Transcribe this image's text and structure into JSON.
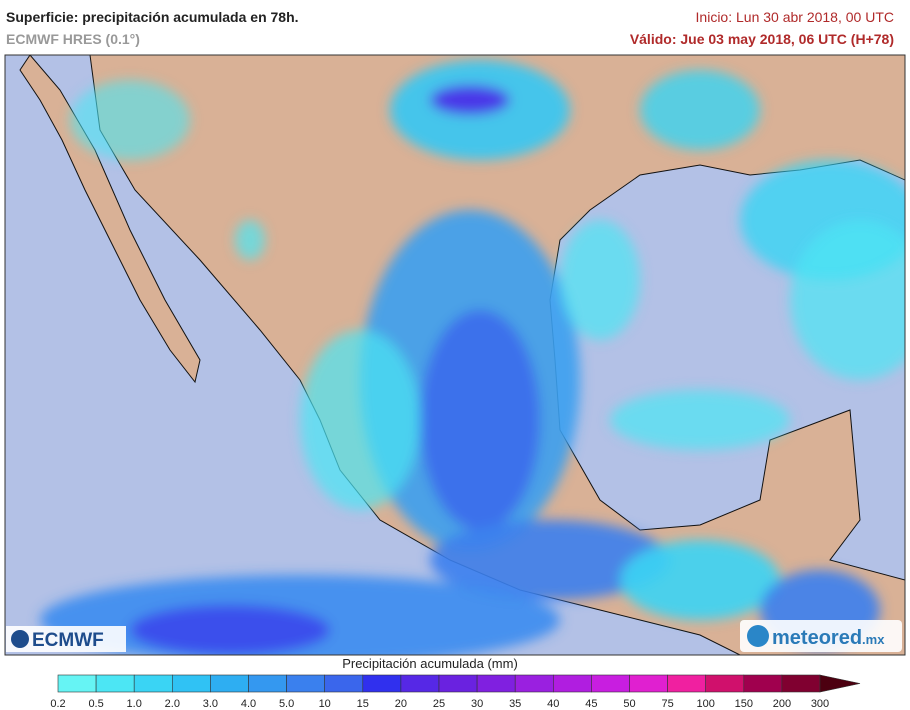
{
  "header": {
    "title": "Superficie: precipitación acumulada en 78h.",
    "model": "ECMWF HRES (0.1°)",
    "init": "Inicio: Lun 30 abr 2018, 00 UTC",
    "valid": "Válido: Jue 03 may 2018, 06 UTC (H+78)"
  },
  "logos": {
    "left": "ECMWF",
    "right": "meteored",
    "right_suffix": ".mx"
  },
  "legend": {
    "title": "Precipitación acumulada (mm)",
    "labels": [
      "0.2",
      "0.5",
      "1.0",
      "2.0",
      "3.0",
      "4.0",
      "5.0",
      "10",
      "15",
      "20",
      "25",
      "30",
      "35",
      "40",
      "45",
      "50",
      "75",
      "100",
      "150",
      "200",
      "300"
    ],
    "colors": [
      "#66f4f4",
      "#4ce6f4",
      "#3ad4f4",
      "#30c2f4",
      "#2eaef2",
      "#3498f0",
      "#3a80ee",
      "#3a66ec",
      "#3030ee",
      "#5628e6",
      "#6a22e0",
      "#8020e0",
      "#9a20e0",
      "#b01ee0",
      "#c81ee0",
      "#e020d0",
      "#f020a0",
      "#d0106c",
      "#a0004e",
      "#800030",
      "#4c0010"
    ]
  }
}
